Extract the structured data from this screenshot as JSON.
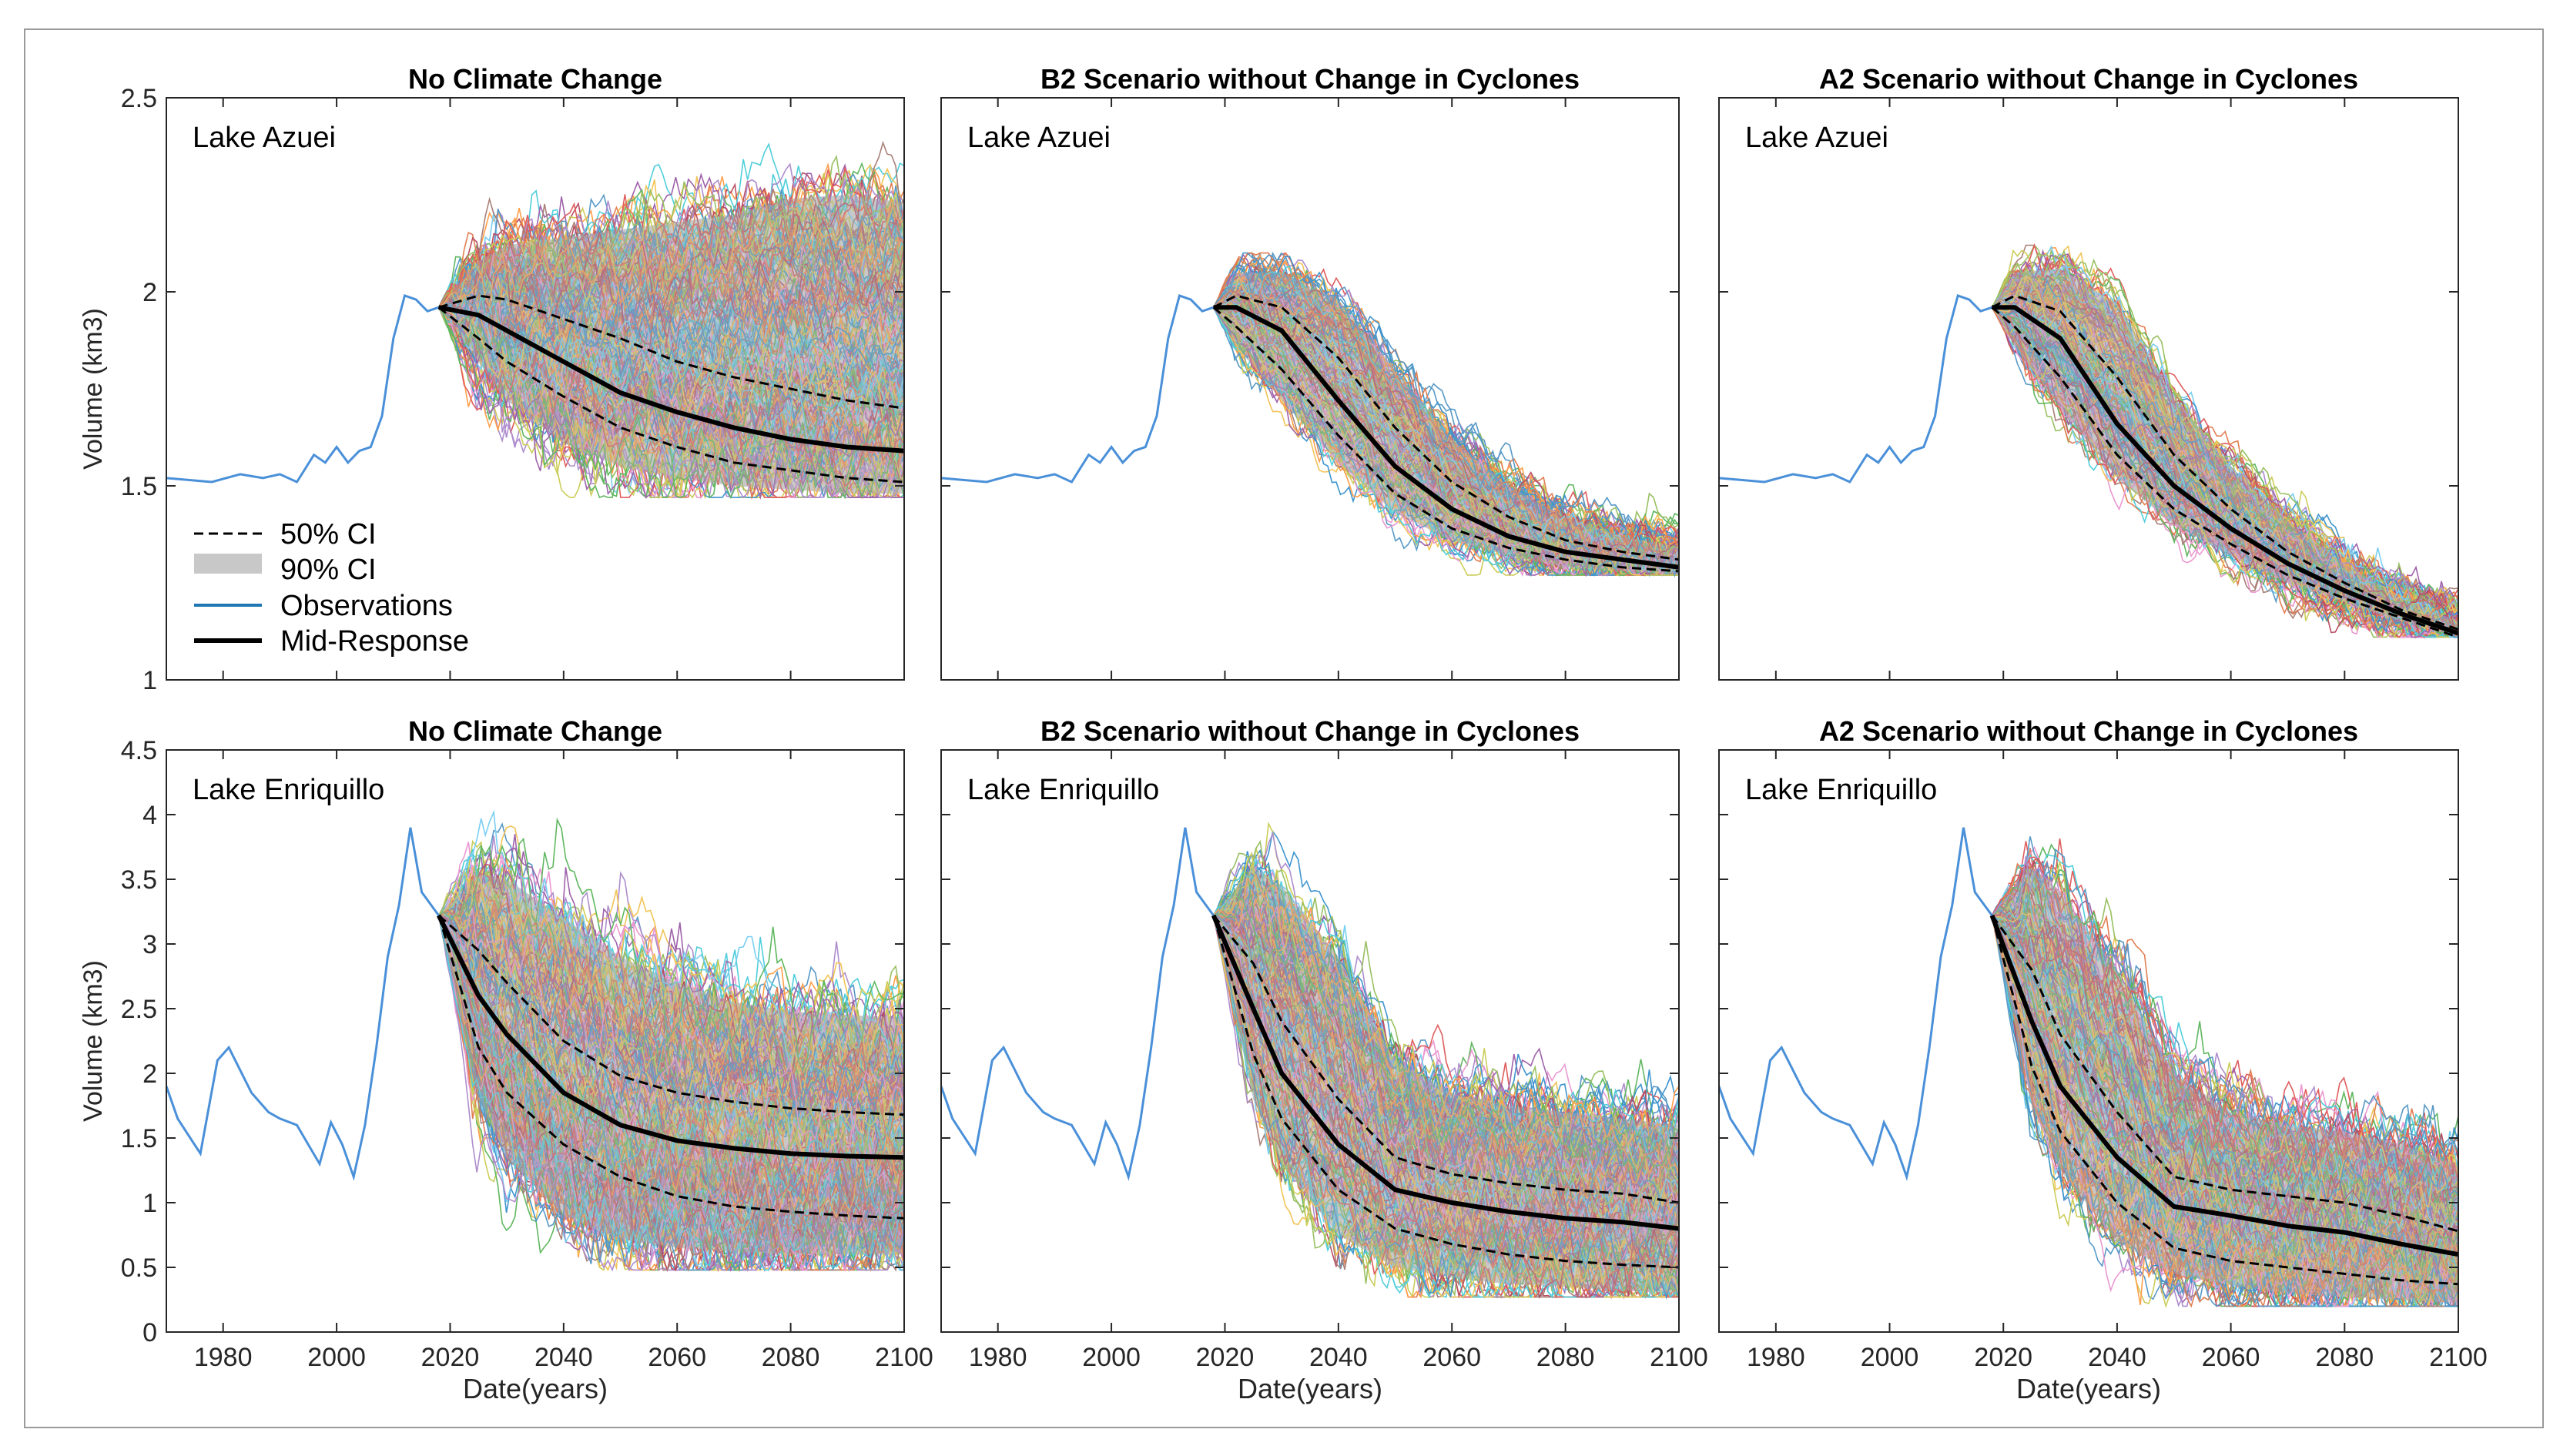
{
  "figure": {
    "legend": {
      "ci50": "50% CI",
      "ci90": "90% CI",
      "obs": "Observations",
      "mid": "Mid-Response"
    },
    "colors": {
      "observations": "#4a90d9",
      "mid": "#000000",
      "ci90": "#c8c8c8",
      "ensemble": [
        "#1f77b4",
        "#ff7f0e",
        "#2ca02c",
        "#d62728",
        "#9467bd",
        "#8c564b",
        "#e377c2",
        "#17becf",
        "#bcbd22",
        "#4dbeee",
        "#edb120",
        "#7e2f8e",
        "#77ac30",
        "#a2142f",
        "#0072bd",
        "#d95319"
      ]
    }
  },
  "chart_data": [
    {
      "id": "azuei-nocc",
      "type": "line",
      "title": "No Climate Change",
      "lake": "Lake Azuei",
      "xlabel": "",
      "ylabel": "Volume (km3)",
      "xlim": [
        1970,
        2100
      ],
      "ylim": [
        1,
        2.5
      ],
      "xticks": [
        1980,
        2000,
        2020,
        2040,
        2060,
        2080,
        2100
      ],
      "yticks": [
        1,
        1.5,
        2,
        2.5
      ],
      "ytick_labels": [
        "1",
        "1.5",
        "2",
        "2.5"
      ],
      "observations": {
        "x": [
          1970,
          1978,
          1983,
          1987,
          1990,
          1993,
          1996,
          1998,
          2000,
          2002,
          2004,
          2006,
          2008,
          2010,
          2012,
          2014,
          2016,
          2018
        ],
        "y": [
          1.52,
          1.51,
          1.53,
          1.52,
          1.53,
          1.51,
          1.58,
          1.56,
          1.6,
          1.56,
          1.59,
          1.6,
          1.68,
          1.88,
          1.99,
          1.98,
          1.95,
          1.96
        ]
      },
      "median": {
        "x": [
          2018,
          2025,
          2030,
          2040,
          2050,
          2060,
          2070,
          2080,
          2090,
          2100
        ],
        "y": [
          1.96,
          1.94,
          1.9,
          1.82,
          1.74,
          1.69,
          1.65,
          1.62,
          1.6,
          1.59
        ]
      },
      "ci50": {
        "x": [
          2018,
          2025,
          2030,
          2040,
          2050,
          2060,
          2070,
          2080,
          2090,
          2100
        ],
        "upper": [
          1.96,
          1.99,
          1.98,
          1.93,
          1.88,
          1.82,
          1.78,
          1.75,
          1.72,
          1.7
        ],
        "lower": [
          1.96,
          1.88,
          1.82,
          1.73,
          1.65,
          1.6,
          1.56,
          1.54,
          1.52,
          1.51
        ]
      },
      "ci90": {
        "x": [
          2018,
          2025,
          2030,
          2040,
          2050,
          2060,
          2070,
          2080,
          2090,
          2100
        ],
        "upper": [
          1.96,
          2.08,
          2.12,
          2.14,
          2.16,
          2.18,
          2.2,
          2.24,
          2.25,
          2.23
        ],
        "lower": [
          1.96,
          1.82,
          1.72,
          1.61,
          1.55,
          1.52,
          1.5,
          1.49,
          1.48,
          1.48
        ]
      },
      "ensemble": {
        "x_start": 2018,
        "x_end": 2100,
        "y_start": 1.96,
        "members": 180,
        "noise": 0.035,
        "max_y": 2.45,
        "min_y": 1.47
      }
    },
    {
      "id": "azuei-b2",
      "type": "line",
      "title": "B2 Scenario without Change in Cyclones",
      "lake": "Lake Azuei",
      "xlabel": "",
      "ylabel": "",
      "xlim": [
        1970,
        2100
      ],
      "ylim": [
        1,
        2.5
      ],
      "xticks": [
        1980,
        2000,
        2020,
        2040,
        2060,
        2080,
        2100
      ],
      "yticks": [
        1,
        1.5,
        2,
        2.5
      ],
      "ytick_labels": [
        "",
        "",
        "",
        ""
      ],
      "observations": {
        "x": [
          1970,
          1978,
          1983,
          1987,
          1990,
          1993,
          1996,
          1998,
          2000,
          2002,
          2004,
          2006,
          2008,
          2010,
          2012,
          2014,
          2016,
          2018
        ],
        "y": [
          1.52,
          1.51,
          1.53,
          1.52,
          1.53,
          1.51,
          1.58,
          1.56,
          1.6,
          1.56,
          1.59,
          1.6,
          1.68,
          1.88,
          1.99,
          1.98,
          1.95,
          1.96
        ]
      },
      "median": {
        "x": [
          2018,
          2022,
          2030,
          2040,
          2050,
          2060,
          2070,
          2080,
          2090,
          2100
        ],
        "y": [
          1.96,
          1.96,
          1.9,
          1.72,
          1.55,
          1.44,
          1.37,
          1.33,
          1.31,
          1.29
        ]
      },
      "ci50": {
        "x": [
          2018,
          2022,
          2030,
          2040,
          2050,
          2060,
          2070,
          2080,
          2090,
          2100
        ],
        "upper": [
          1.96,
          1.99,
          1.96,
          1.83,
          1.65,
          1.51,
          1.42,
          1.36,
          1.33,
          1.31
        ],
        "lower": [
          1.96,
          1.91,
          1.8,
          1.63,
          1.48,
          1.39,
          1.34,
          1.31,
          1.29,
          1.28
        ]
      },
      "ci90": {
        "x": [
          2018,
          2022,
          2030,
          2040,
          2050,
          2060,
          2070,
          2080,
          2090,
          2100
        ],
        "upper": [
          1.96,
          2.05,
          2.05,
          1.98,
          1.8,
          1.62,
          1.5,
          1.42,
          1.37,
          1.34
        ],
        "lower": [
          1.96,
          1.86,
          1.72,
          1.56,
          1.43,
          1.36,
          1.32,
          1.29,
          1.28,
          1.27
        ]
      },
      "ensemble": {
        "x_start": 2018,
        "x_end": 2100,
        "y_start": 1.96,
        "members": 160,
        "noise": 0.02,
        "max_y": 2.1,
        "min_y": 1.27
      }
    },
    {
      "id": "azuei-a2",
      "type": "line",
      "title": "A2 Scenario without Change in Cyclones",
      "lake": "Lake Azuei",
      "xlabel": "",
      "ylabel": "",
      "xlim": [
        1970,
        2100
      ],
      "ylim": [
        1,
        2.5
      ],
      "xticks": [
        1980,
        2000,
        2020,
        2040,
        2060,
        2080,
        2100
      ],
      "yticks": [
        1,
        1.5,
        2,
        2.5
      ],
      "ytick_labels": [
        "",
        "",
        "",
        ""
      ],
      "observations": {
        "x": [
          1970,
          1978,
          1983,
          1987,
          1990,
          1993,
          1996,
          1998,
          2000,
          2002,
          2004,
          2006,
          2008,
          2010,
          2012,
          2014,
          2016,
          2018
        ],
        "y": [
          1.52,
          1.51,
          1.53,
          1.52,
          1.53,
          1.51,
          1.58,
          1.56,
          1.6,
          1.56,
          1.59,
          1.6,
          1.68,
          1.88,
          1.99,
          1.98,
          1.95,
          1.96
        ]
      },
      "median": {
        "x": [
          2018,
          2022,
          2030,
          2040,
          2050,
          2060,
          2070,
          2080,
          2090,
          2100
        ],
        "y": [
          1.96,
          1.96,
          1.88,
          1.66,
          1.5,
          1.39,
          1.3,
          1.23,
          1.17,
          1.12
        ]
      },
      "ci50": {
        "x": [
          2018,
          2022,
          2030,
          2040,
          2050,
          2060,
          2070,
          2080,
          2090,
          2100
        ],
        "upper": [
          1.96,
          1.99,
          1.95,
          1.78,
          1.58,
          1.44,
          1.33,
          1.25,
          1.18,
          1.13
        ],
        "lower": [
          1.96,
          1.91,
          1.78,
          1.58,
          1.44,
          1.35,
          1.27,
          1.21,
          1.16,
          1.11
        ]
      },
      "ci90": {
        "x": [
          2018,
          2022,
          2030,
          2040,
          2050,
          2060,
          2070,
          2080,
          2090,
          2100
        ],
        "upper": [
          1.96,
          2.05,
          2.06,
          1.97,
          1.73,
          1.55,
          1.41,
          1.3,
          1.21,
          1.15
        ],
        "lower": [
          1.96,
          1.86,
          1.7,
          1.52,
          1.4,
          1.32,
          1.25,
          1.2,
          1.15,
          1.11
        ]
      },
      "ensemble": {
        "x_start": 2018,
        "x_end": 2100,
        "y_start": 1.96,
        "members": 160,
        "noise": 0.02,
        "max_y": 2.12,
        "min_y": 1.11
      }
    },
    {
      "id": "enriquillo-nocc",
      "type": "line",
      "title": "No Climate Change",
      "lake": "Lake Enriquillo",
      "xlabel": "Date(years)",
      "ylabel": "Volume (km3)",
      "xlim": [
        1970,
        2100
      ],
      "ylim": [
        0,
        4.5
      ],
      "xticks": [
        1980,
        2000,
        2020,
        2040,
        2060,
        2080,
        2100
      ],
      "yticks": [
        0,
        0.5,
        1,
        1.5,
        2,
        2.5,
        3,
        3.5,
        4,
        4.5
      ],
      "ytick_labels": [
        "0",
        "0.5",
        "1",
        "1.5",
        "2",
        "2.5",
        "3",
        "3.5",
        "4",
        "4.5"
      ],
      "observations": {
        "x": [
          1970,
          1972,
          1976,
          1979,
          1981,
          1985,
          1988,
          1990,
          1993,
          1995,
          1997,
          1999,
          2001,
          2003,
          2005,
          2007,
          2009,
          2011,
          2013,
          2015,
          2018
        ],
        "y": [
          1.9,
          1.65,
          1.38,
          2.1,
          2.2,
          1.85,
          1.7,
          1.65,
          1.6,
          1.45,
          1.3,
          1.62,
          1.45,
          1.2,
          1.6,
          2.2,
          2.9,
          3.3,
          3.9,
          3.4,
          3.22
        ]
      },
      "median": {
        "x": [
          2018,
          2025,
          2030,
          2040,
          2050,
          2060,
          2070,
          2080,
          2090,
          2100
        ],
        "y": [
          3.22,
          2.6,
          2.3,
          1.85,
          1.6,
          1.48,
          1.42,
          1.38,
          1.36,
          1.35
        ]
      },
      "ci50": {
        "x": [
          2018,
          2025,
          2030,
          2040,
          2050,
          2060,
          2070,
          2080,
          2090,
          2100
        ],
        "upper": [
          3.22,
          2.95,
          2.7,
          2.25,
          1.98,
          1.85,
          1.78,
          1.73,
          1.7,
          1.68
        ],
        "lower": [
          3.22,
          2.2,
          1.85,
          1.45,
          1.2,
          1.05,
          0.97,
          0.93,
          0.9,
          0.88
        ]
      },
      "ci90": {
        "x": [
          2018,
          2025,
          2030,
          2040,
          2050,
          2060,
          2070,
          2080,
          2090,
          2100
        ],
        "upper": [
          3.22,
          3.55,
          3.5,
          3.2,
          2.9,
          2.7,
          2.55,
          2.48,
          2.45,
          2.43
        ],
        "lower": [
          3.22,
          1.8,
          1.35,
          0.9,
          0.72,
          0.65,
          0.62,
          0.6,
          0.6,
          0.6
        ]
      },
      "ensemble": {
        "x_start": 2018,
        "x_end": 2100,
        "y_start": 3.22,
        "members": 200,
        "noise": 0.12,
        "max_y": 4.4,
        "min_y": 0.48
      }
    },
    {
      "id": "enriquillo-b2",
      "type": "line",
      "title": "B2 Scenario without Change in Cyclones",
      "lake": "Lake Enriquillo",
      "xlabel": "Date(years)",
      "ylabel": "",
      "xlim": [
        1970,
        2100
      ],
      "ylim": [
        0,
        4.5
      ],
      "xticks": [
        1980,
        2000,
        2020,
        2040,
        2060,
        2080,
        2100
      ],
      "yticks": [
        0,
        0.5,
        1,
        1.5,
        2,
        2.5,
        3,
        3.5,
        4,
        4.5
      ],
      "ytick_labels": [
        "",
        "",
        "",
        "",
        "",
        "",
        "",
        "",
        "",
        ""
      ],
      "observations": {
        "x": [
          1970,
          1972,
          1976,
          1979,
          1981,
          1985,
          1988,
          1990,
          1993,
          1995,
          1997,
          1999,
          2001,
          2003,
          2005,
          2007,
          2009,
          2011,
          2013,
          2015,
          2018
        ],
        "y": [
          1.9,
          1.65,
          1.38,
          2.1,
          2.2,
          1.85,
          1.7,
          1.65,
          1.6,
          1.45,
          1.3,
          1.62,
          1.45,
          1.2,
          1.6,
          2.2,
          2.9,
          3.3,
          3.9,
          3.4,
          3.22
        ]
      },
      "median": {
        "x": [
          2018,
          2025,
          2030,
          2040,
          2050,
          2060,
          2070,
          2080,
          2090,
          2100
        ],
        "y": [
          3.22,
          2.5,
          2.0,
          1.45,
          1.1,
          1.0,
          0.93,
          0.88,
          0.85,
          0.8
        ]
      },
      "ci50": {
        "x": [
          2018,
          2025,
          2030,
          2040,
          2050,
          2060,
          2070,
          2080,
          2090,
          2100
        ],
        "upper": [
          3.22,
          2.85,
          2.4,
          1.8,
          1.35,
          1.22,
          1.15,
          1.1,
          1.07,
          1.0
        ],
        "lower": [
          3.22,
          2.15,
          1.65,
          1.1,
          0.8,
          0.68,
          0.6,
          0.55,
          0.52,
          0.5
        ]
      },
      "ci90": {
        "x": [
          2018,
          2025,
          2030,
          2040,
          2050,
          2060,
          2070,
          2080,
          2090,
          2100
        ],
        "upper": [
          3.22,
          3.6,
          3.45,
          2.9,
          2.1,
          1.85,
          1.75,
          1.7,
          1.65,
          1.6
        ],
        "lower": [
          3.22,
          1.8,
          1.3,
          0.75,
          0.5,
          0.42,
          0.37,
          0.35,
          0.32,
          0.3
        ]
      },
      "ensemble": {
        "x_start": 2018,
        "x_end": 2100,
        "y_start": 3.22,
        "members": 180,
        "noise": 0.1,
        "max_y": 4.0,
        "min_y": 0.27
      }
    },
    {
      "id": "enriquillo-a2",
      "type": "line",
      "title": "A2 Scenario without Change in Cyclones",
      "lake": "Lake Enriquillo",
      "xlabel": "Date(years)",
      "ylabel": "",
      "xlim": [
        1970,
        2100
      ],
      "ylim": [
        0,
        4.5
      ],
      "xticks": [
        1980,
        2000,
        2020,
        2040,
        2060,
        2080,
        2100
      ],
      "yticks": [
        0,
        0.5,
        1,
        1.5,
        2,
        2.5,
        3,
        3.5,
        4,
        4.5
      ],
      "ytick_labels": [
        "",
        "",
        "",
        "",
        "",
        "",
        "",
        "",
        "",
        ""
      ],
      "observations": {
        "x": [
          1970,
          1972,
          1976,
          1979,
          1981,
          1985,
          1988,
          1990,
          1993,
          1995,
          1997,
          1999,
          2001,
          2003,
          2005,
          2007,
          2009,
          2011,
          2013,
          2015,
          2018
        ],
        "y": [
          1.9,
          1.65,
          1.38,
          2.1,
          2.2,
          1.85,
          1.7,
          1.65,
          1.6,
          1.45,
          1.3,
          1.62,
          1.45,
          1.2,
          1.6,
          2.2,
          2.9,
          3.3,
          3.9,
          3.4,
          3.22
        ]
      },
      "median": {
        "x": [
          2018,
          2025,
          2030,
          2040,
          2050,
          2060,
          2070,
          2080,
          2090,
          2100
        ],
        "y": [
          3.22,
          2.4,
          1.9,
          1.35,
          0.97,
          0.9,
          0.82,
          0.77,
          0.68,
          0.6
        ]
      },
      "ci50": {
        "x": [
          2018,
          2025,
          2030,
          2040,
          2050,
          2060,
          2070,
          2080,
          2090,
          2100
        ],
        "upper": [
          3.22,
          2.8,
          2.3,
          1.7,
          1.2,
          1.1,
          1.05,
          1.0,
          0.9,
          0.78
        ],
        "lower": [
          3.22,
          2.05,
          1.55,
          1.0,
          0.65,
          0.55,
          0.5,
          0.45,
          0.4,
          0.37
        ]
      },
      "ci90": {
        "x": [
          2018,
          2025,
          2030,
          2040,
          2050,
          2060,
          2070,
          2080,
          2090,
          2100
        ],
        "upper": [
          3.22,
          3.6,
          3.4,
          2.8,
          2.0,
          1.7,
          1.6,
          1.55,
          1.45,
          1.3
        ],
        "lower": [
          3.22,
          1.75,
          1.25,
          0.7,
          0.45,
          0.36,
          0.3,
          0.27,
          0.25,
          0.22
        ]
      },
      "ensemble": {
        "x_start": 2018,
        "x_end": 2100,
        "y_start": 3.22,
        "members": 180,
        "noise": 0.1,
        "max_y": 4.3,
        "min_y": 0.2
      }
    }
  ]
}
